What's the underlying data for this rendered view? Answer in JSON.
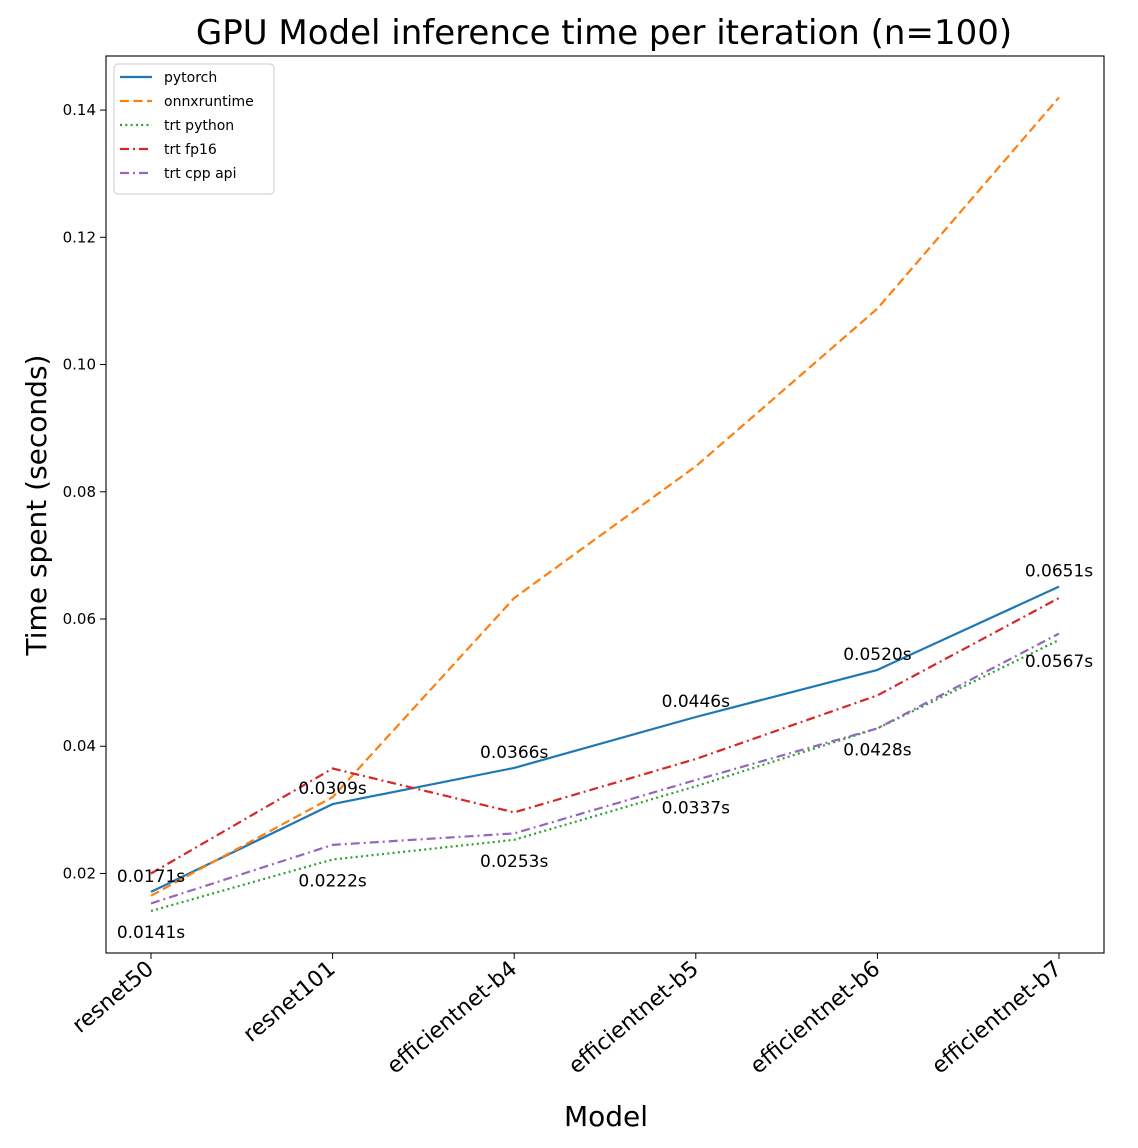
{
  "chart_data": {
    "type": "line",
    "title": "GPU Model inference time per iteration (n=100)",
    "xlabel": "Model",
    "ylabel": "Time spent (seconds)",
    "categories": [
      "resnet50",
      "resnet101",
      "efficientnet-b4",
      "efficientnet-b5",
      "efficientnet-b6",
      "efficientnet-b7"
    ],
    "ylim": [
      0.0075,
      0.1485
    ],
    "yticks": [
      "0.02",
      "0.04",
      "0.06",
      "0.08",
      "0.10",
      "0.12",
      "0.14"
    ],
    "grid": false,
    "legend_position": "top-left",
    "series": [
      {
        "name": "pytorch",
        "color": "#1f77b4",
        "dash": "solid",
        "values": [
          0.0171,
          0.0309,
          0.0366,
          0.0446,
          0.052,
          0.0651
        ]
      },
      {
        "name": "onnxruntime",
        "color": "#ff7f0e",
        "dash": "dashed",
        "values": [
          0.0165,
          0.032,
          0.0633,
          0.084,
          0.1088,
          0.142
        ]
      },
      {
        "name": "trt python",
        "color": "#2ca02c",
        "dash": "dotted",
        "values": [
          0.0141,
          0.0222,
          0.0253,
          0.0337,
          0.0428,
          0.0567
        ]
      },
      {
        "name": "trt fp16",
        "color": "#d62728",
        "dash": "dashdot",
        "values": [
          0.02,
          0.0365,
          0.0296,
          0.038,
          0.048,
          0.0633
        ]
      },
      {
        "name": "trt cpp api",
        "color": "#9467bd",
        "dash": "dashdot",
        "values": [
          0.0153,
          0.0245,
          0.0263,
          0.0347,
          0.0428,
          0.0577
        ]
      }
    ],
    "annotations": [
      {
        "text": "0.0171s",
        "category": "resnet50",
        "value": 0.0171,
        "placement": "above"
      },
      {
        "text": "0.0141s",
        "category": "resnet50",
        "value": 0.0141,
        "placement": "below"
      },
      {
        "text": "0.0309s",
        "category": "resnet101",
        "value": 0.0309,
        "placement": "above"
      },
      {
        "text": "0.0222s",
        "category": "resnet101",
        "value": 0.0222,
        "placement": "below"
      },
      {
        "text": "0.0366s",
        "category": "efficientnet-b4",
        "value": 0.0366,
        "placement": "above"
      },
      {
        "text": "0.0253s",
        "category": "efficientnet-b4",
        "value": 0.0253,
        "placement": "below"
      },
      {
        "text": "0.0446s",
        "category": "efficientnet-b5",
        "value": 0.0446,
        "placement": "above"
      },
      {
        "text": "0.0337s",
        "category": "efficientnet-b5",
        "value": 0.0337,
        "placement": "below"
      },
      {
        "text": "0.0520s",
        "category": "efficientnet-b6",
        "value": 0.052,
        "placement": "above"
      },
      {
        "text": "0.0428s",
        "category": "efficientnet-b6",
        "value": 0.0428,
        "placement": "below"
      },
      {
        "text": "0.0651s",
        "category": "efficientnet-b7",
        "value": 0.0651,
        "placement": "above"
      },
      {
        "text": "0.0567s",
        "category": "efficientnet-b7",
        "value": 0.0567,
        "placement": "below"
      }
    ]
  }
}
